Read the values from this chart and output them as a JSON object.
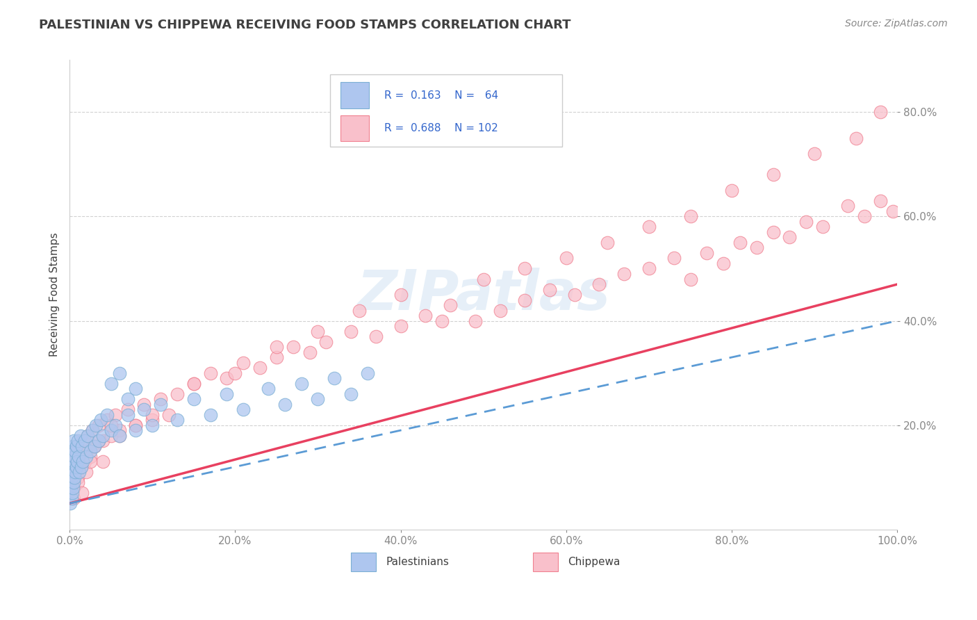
{
  "title": "PALESTINIAN VS CHIPPEWA RECEIVING FOOD STAMPS CORRELATION CHART",
  "source": "Source: ZipAtlas.com",
  "ylabel": "Receiving Food Stamps",
  "watermark": "ZIPatlas",
  "legend_entries": [
    {
      "label": "Palestinians",
      "color": "#aec6ef",
      "edge_color": "#7bafd4",
      "R": 0.163,
      "N": 64
    },
    {
      "label": "Chippewa",
      "color": "#f9c0cb",
      "edge_color": "#f08090",
      "R": 0.688,
      "N": 102
    }
  ],
  "pal_scatter_face": "#aec6ef",
  "pal_scatter_edge": "#7bafd4",
  "chip_scatter_face": "#f9c0cb",
  "chip_scatter_edge": "#f08090",
  "pal_line_color": "#5b9bd5",
  "chip_line_color": "#e84060",
  "grid_color": "#cccccc",
  "background_color": "#ffffff",
  "title_color": "#404040",
  "source_color": "#888888",
  "xlim": [
    0.0,
    1.0
  ],
  "ylim": [
    0.0,
    0.9
  ],
  "xticks": [
    0.0,
    0.2,
    0.4,
    0.6,
    0.8,
    1.0
  ],
  "yticks": [
    0.2,
    0.4,
    0.6,
    0.8
  ],
  "xticklabels": [
    "0.0%",
    "20.0%",
    "40.0%",
    "60.0%",
    "80.0%",
    "100.0%"
  ],
  "yticklabels": [
    "20.0%",
    "40.0%",
    "60.0%",
    "80.0%"
  ],
  "pal_line_intercept": 0.05,
  "pal_line_slope": 0.35,
  "chip_line_intercept": 0.05,
  "chip_line_slope": 0.42,
  "pal_x": [
    0.001,
    0.001,
    0.001,
    0.002,
    0.002,
    0.002,
    0.003,
    0.003,
    0.003,
    0.004,
    0.004,
    0.004,
    0.005,
    0.005,
    0.005,
    0.006,
    0.006,
    0.007,
    0.007,
    0.008,
    0.008,
    0.009,
    0.01,
    0.011,
    0.012,
    0.013,
    0.014,
    0.015,
    0.016,
    0.018,
    0.02,
    0.022,
    0.025,
    0.028,
    0.03,
    0.032,
    0.035,
    0.038,
    0.04,
    0.045,
    0.05,
    0.055,
    0.06,
    0.07,
    0.08,
    0.09,
    0.1,
    0.11,
    0.13,
    0.15,
    0.17,
    0.19,
    0.21,
    0.24,
    0.26,
    0.28,
    0.3,
    0.32,
    0.34,
    0.36,
    0.05,
    0.06,
    0.07,
    0.08
  ],
  "pal_y": [
    0.05,
    0.08,
    0.12,
    0.06,
    0.1,
    0.15,
    0.07,
    0.11,
    0.14,
    0.08,
    0.12,
    0.16,
    0.09,
    0.13,
    0.17,
    0.1,
    0.14,
    0.11,
    0.15,
    0.12,
    0.16,
    0.13,
    0.17,
    0.14,
    0.11,
    0.18,
    0.12,
    0.16,
    0.13,
    0.17,
    0.14,
    0.18,
    0.15,
    0.19,
    0.16,
    0.2,
    0.17,
    0.21,
    0.18,
    0.22,
    0.19,
    0.2,
    0.18,
    0.22,
    0.19,
    0.23,
    0.2,
    0.24,
    0.21,
    0.25,
    0.22,
    0.26,
    0.23,
    0.27,
    0.24,
    0.28,
    0.25,
    0.29,
    0.26,
    0.3,
    0.28,
    0.3,
    0.25,
    0.27
  ],
  "chip_x": [
    0.001,
    0.002,
    0.003,
    0.004,
    0.005,
    0.006,
    0.007,
    0.008,
    0.009,
    0.01,
    0.012,
    0.014,
    0.016,
    0.018,
    0.02,
    0.022,
    0.025,
    0.028,
    0.03,
    0.035,
    0.04,
    0.045,
    0.05,
    0.055,
    0.06,
    0.07,
    0.08,
    0.09,
    0.1,
    0.11,
    0.12,
    0.13,
    0.15,
    0.17,
    0.19,
    0.21,
    0.23,
    0.25,
    0.27,
    0.29,
    0.31,
    0.34,
    0.37,
    0.4,
    0.43,
    0.46,
    0.49,
    0.52,
    0.55,
    0.58,
    0.61,
    0.64,
    0.67,
    0.7,
    0.73,
    0.75,
    0.77,
    0.79,
    0.81,
    0.83,
    0.85,
    0.87,
    0.89,
    0.91,
    0.94,
    0.96,
    0.98,
    0.995,
    0.003,
    0.005,
    0.008,
    0.012,
    0.02,
    0.03,
    0.04,
    0.06,
    0.08,
    0.1,
    0.15,
    0.2,
    0.25,
    0.3,
    0.35,
    0.4,
    0.45,
    0.5,
    0.55,
    0.6,
    0.65,
    0.7,
    0.75,
    0.8,
    0.85,
    0.9,
    0.95,
    0.98,
    0.005,
    0.01,
    0.015,
    0.025,
    0.035,
    0.05
  ],
  "chip_y": [
    0.08,
    0.12,
    0.1,
    0.14,
    0.09,
    0.15,
    0.11,
    0.13,
    0.16,
    0.1,
    0.14,
    0.12,
    0.17,
    0.13,
    0.15,
    0.18,
    0.14,
    0.19,
    0.16,
    0.2,
    0.17,
    0.21,
    0.18,
    0.22,
    0.19,
    0.23,
    0.2,
    0.24,
    0.21,
    0.25,
    0.22,
    0.26,
    0.28,
    0.3,
    0.29,
    0.32,
    0.31,
    0.33,
    0.35,
    0.34,
    0.36,
    0.38,
    0.37,
    0.39,
    0.41,
    0.43,
    0.4,
    0.42,
    0.44,
    0.46,
    0.45,
    0.47,
    0.49,
    0.5,
    0.52,
    0.48,
    0.53,
    0.51,
    0.55,
    0.54,
    0.57,
    0.56,
    0.59,
    0.58,
    0.62,
    0.6,
    0.63,
    0.61,
    0.1,
    0.08,
    0.12,
    0.15,
    0.11,
    0.16,
    0.13,
    0.18,
    0.2,
    0.22,
    0.28,
    0.3,
    0.35,
    0.38,
    0.42,
    0.45,
    0.4,
    0.48,
    0.5,
    0.52,
    0.55,
    0.58,
    0.6,
    0.65,
    0.68,
    0.72,
    0.75,
    0.8,
    0.06,
    0.09,
    0.07,
    0.13,
    0.17,
    0.2
  ]
}
